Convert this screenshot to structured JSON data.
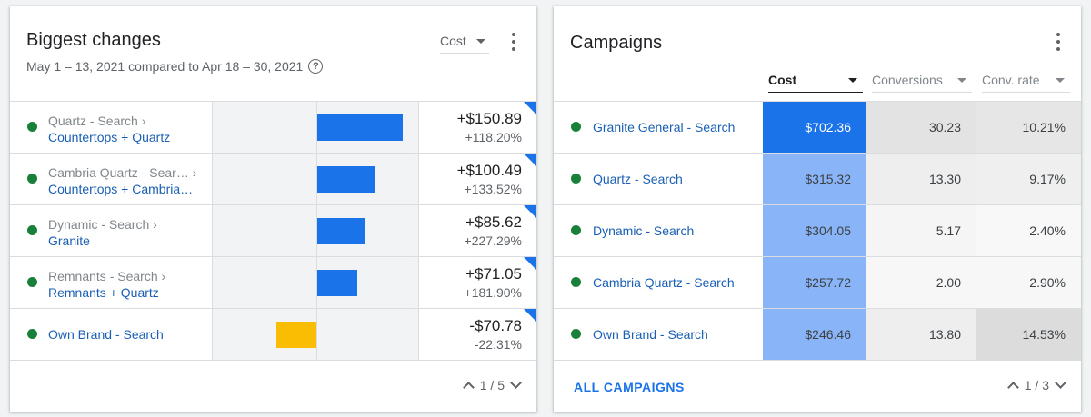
{
  "changes": {
    "title": "Biggest changes",
    "subtitle": "May 1 – 13, 2021 compared to Apr 18 – 30, 2021",
    "help_icon": "?",
    "metric": "Cost",
    "rows": [
      {
        "campaign": "Quartz - Search ›",
        "group": "Countertops + Quartz",
        "value": "+$150.89",
        "pct": "+118.20%",
        "change": 150.89,
        "status_color": "#188038",
        "bar_color": "#1a73e8"
      },
      {
        "campaign": "Cambria Quartz - Sear… ›",
        "group": "Countertops + Cambria…",
        "value": "+$100.49",
        "pct": "+133.52%",
        "change": 100.49,
        "status_color": "#188038",
        "bar_color": "#1a73e8"
      },
      {
        "campaign": "Dynamic - Search ›",
        "group": "Granite",
        "value": "+$85.62",
        "pct": "+227.29%",
        "change": 85.62,
        "status_color": "#188038",
        "bar_color": "#1a73e8"
      },
      {
        "campaign": "Remnants - Search ›",
        "group": "Remnants + Quartz",
        "value": "+$71.05",
        "pct": "+181.90%",
        "change": 71.05,
        "status_color": "#188038",
        "bar_color": "#1a73e8"
      },
      {
        "campaign": "",
        "group": "Own Brand - Search",
        "value": "-$70.78",
        "pct": "-22.31%",
        "change": -70.78,
        "status_color": "#188038",
        "bar_color": "#fbbc04"
      }
    ],
    "pager": "1 / 5"
  },
  "campaigns": {
    "title": "Campaigns",
    "headers": {
      "cost": "Cost",
      "conversions": "Conversions",
      "conv_rate": "Conv. rate"
    },
    "rows": [
      {
        "name": "Granite General - Search",
        "cost": "$702.36",
        "conversions": "30.23",
        "conv_rate": "10.21%",
        "cost_bg": "#1a73e8",
        "cost_fg": "#ffffff",
        "conv_bg": "#e3e3e3",
        "rate_bg": "#e6e6e6"
      },
      {
        "name": "Quartz - Search",
        "cost": "$315.32",
        "conversions": "13.30",
        "conv_rate": "9.17%",
        "cost_bg": "#8ab4f8",
        "cost_fg": "#3c4043",
        "conv_bg": "#eeeeee",
        "rate_bg": "#efefef"
      },
      {
        "name": "Dynamic - Search",
        "cost": "$304.05",
        "conversions": "5.17",
        "conv_rate": "2.40%",
        "cost_bg": "#8ab4f8",
        "cost_fg": "#3c4043",
        "conv_bg": "#f5f5f5",
        "rate_bg": "#f8f8f8"
      },
      {
        "name": "Cambria Quartz - Search",
        "cost": "$257.72",
        "conversions": "2.00",
        "conv_rate": "2.90%",
        "cost_bg": "#8ab4f8",
        "cost_fg": "#3c4043",
        "conv_bg": "#f7f7f7",
        "rate_bg": "#f7f7f7"
      },
      {
        "name": "Own Brand - Search",
        "cost": "$246.46",
        "conversions": "13.80",
        "conv_rate": "14.53%",
        "cost_bg": "#8ab4f8",
        "cost_fg": "#3c4043",
        "conv_bg": "#eeeeee",
        "rate_bg": "#dcdcdc"
      }
    ],
    "all_label": "ALL CAMPAIGNS",
    "pager": "1 / 3"
  }
}
